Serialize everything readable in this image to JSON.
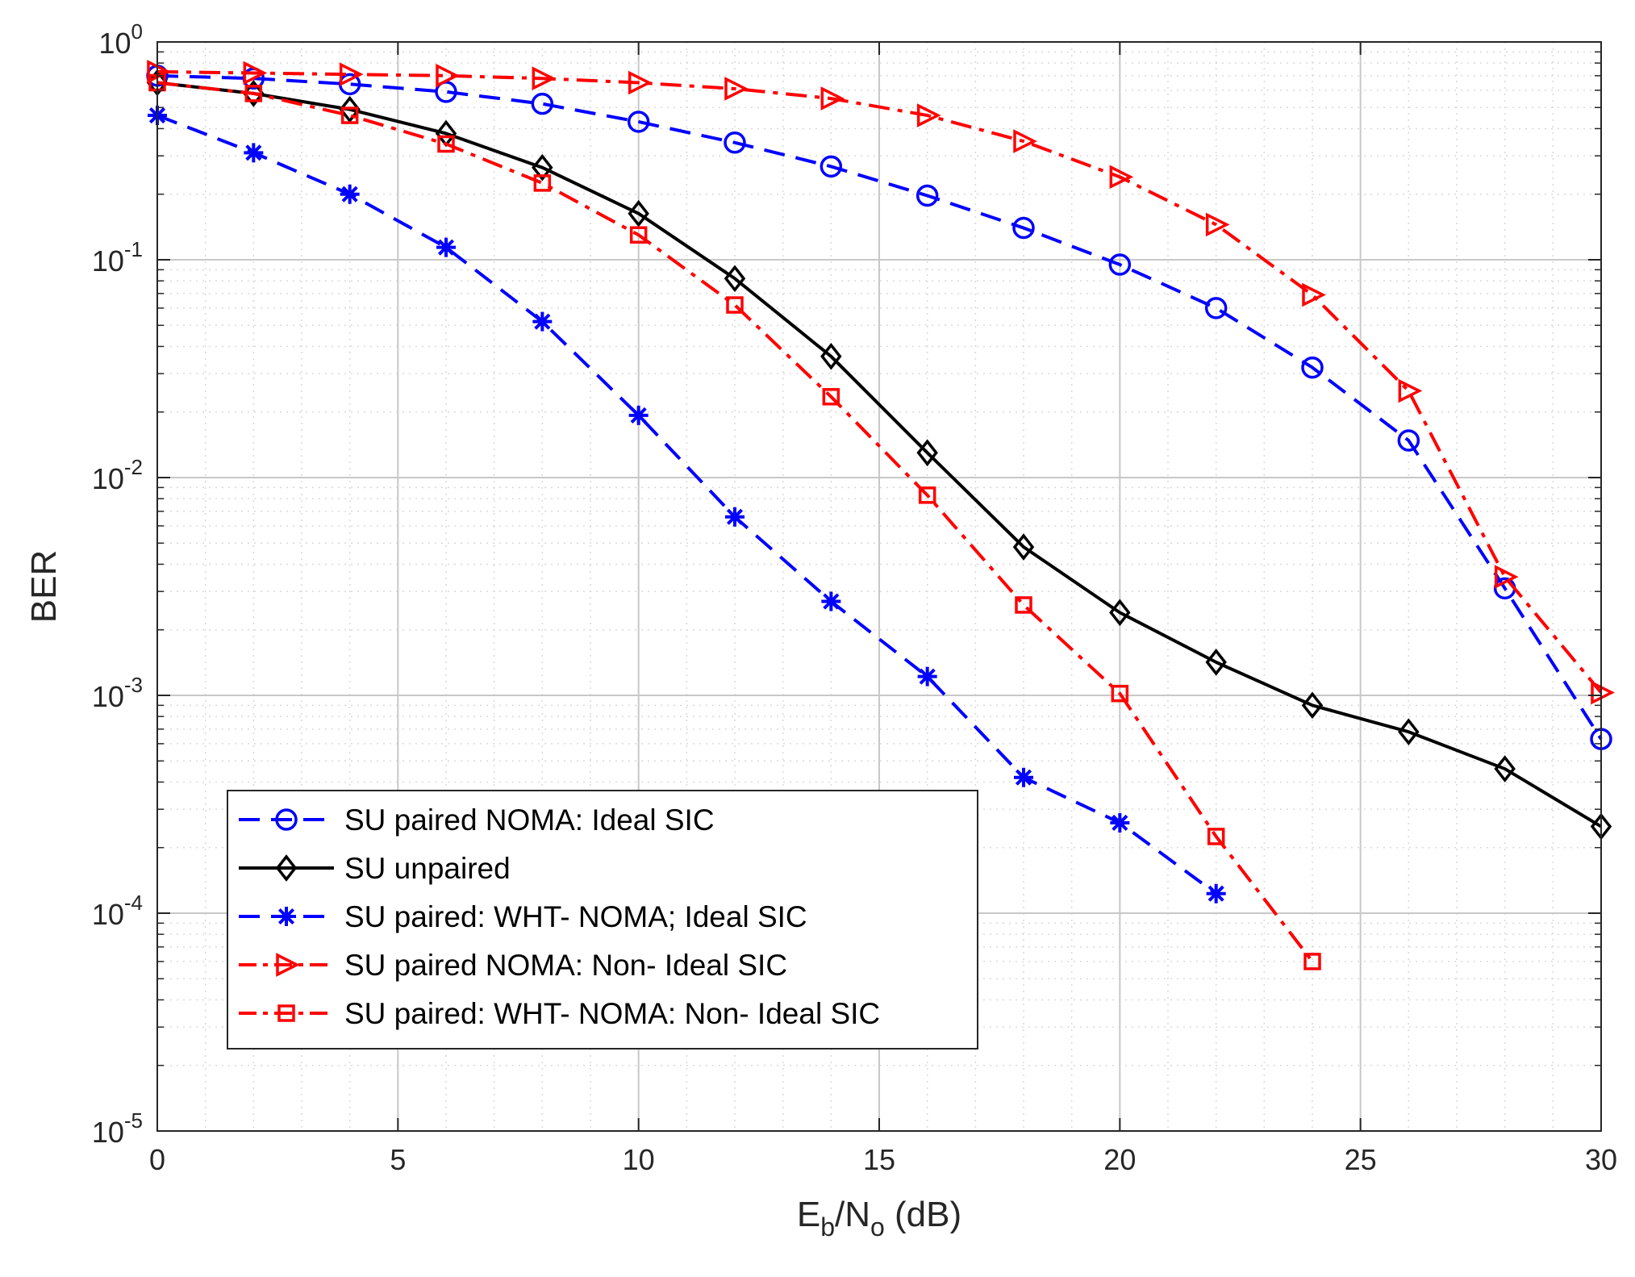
{
  "chart_data": {
    "type": "line",
    "xlabel": {
      "main": "E",
      "sub1": "b",
      "mid": "/N",
      "sub2": "o",
      "tail": " (dB)"
    },
    "ylabel": "BER",
    "yscale": "log",
    "xlim": [
      0,
      30
    ],
    "ylim": [
      1e-05,
      1
    ],
    "grid": true,
    "minor_grid": true,
    "legend_position": "bottom-left",
    "x_ticks": [
      0,
      5,
      10,
      15,
      20,
      25,
      30
    ],
    "x_tick_labels": [
      "0",
      "5",
      "10",
      "15",
      "20",
      "25",
      "30"
    ],
    "y_ticks": [
      {
        "value": 1,
        "base": "10",
        "exp": "0"
      },
      {
        "value": 0.1,
        "base": "10",
        "exp": "-1"
      },
      {
        "value": 0.01,
        "base": "10",
        "exp": "-2"
      },
      {
        "value": 0.001,
        "base": "10",
        "exp": "-3"
      },
      {
        "value": 0.0001,
        "base": "10",
        "exp": "-4"
      },
      {
        "value": 1e-05,
        "base": "10",
        "exp": "-5"
      }
    ],
    "series": [
      {
        "name": "SU paired NOMA: Ideal SIC",
        "color": "#0000ff",
        "dash": "dash",
        "marker": "circle",
        "x": [
          0,
          2,
          4,
          6,
          8,
          10,
          12,
          14,
          16,
          18,
          20,
          22,
          24,
          26,
          28,
          30
        ],
        "y": [
          0.7,
          0.68,
          0.64,
          0.59,
          0.52,
          0.43,
          0.345,
          0.268,
          0.197,
          0.14,
          0.095,
          0.06,
          0.032,
          0.0148,
          0.0031,
          0.00063
        ]
      },
      {
        "name": "SU unpaired",
        "color": "#000000",
        "dash": "solid",
        "marker": "diamond",
        "x": [
          0,
          2,
          4,
          6,
          8,
          10,
          12,
          14,
          16,
          18,
          20,
          22,
          24,
          26,
          28,
          30
        ],
        "y": [
          0.65,
          0.58,
          0.49,
          0.38,
          0.265,
          0.163,
          0.082,
          0.036,
          0.013,
          0.0048,
          0.0024,
          0.00142,
          0.0009,
          0.00068,
          0.00046,
          0.00025
        ]
      },
      {
        "name": "SU paired: WHT- NOMA; Ideal SIC",
        "color": "#0000ff",
        "dash": "dash",
        "marker": "asterisk",
        "x": [
          0,
          2,
          4,
          6,
          8,
          10,
          12,
          14,
          16,
          18,
          20,
          22
        ],
        "y": [
          0.46,
          0.31,
          0.2,
          0.114,
          0.052,
          0.0193,
          0.0066,
          0.0027,
          0.00122,
          0.00042,
          0.00026,
          0.000123
        ]
      },
      {
        "name": "SU paired NOMA: Non- Ideal SIC",
        "color": "#ff0000",
        "dash": "dashdot",
        "marker": "triangle-right",
        "x": [
          0,
          2,
          4,
          6,
          8,
          10,
          12,
          14,
          16,
          18,
          20,
          22,
          24,
          26,
          28,
          30
        ],
        "y": [
          0.73,
          0.72,
          0.71,
          0.7,
          0.68,
          0.65,
          0.61,
          0.55,
          0.46,
          0.35,
          0.24,
          0.145,
          0.069,
          0.025,
          0.0035,
          0.00103
        ]
      },
      {
        "name": "SU paired: WHT- NOMA: Non- Ideal SIC",
        "color": "#ff0000",
        "dash": "dashdot",
        "marker": "square",
        "x": [
          0,
          2,
          4,
          6,
          8,
          10,
          12,
          14,
          16,
          18,
          20,
          22,
          24
        ],
        "y": [
          0.65,
          0.58,
          0.46,
          0.34,
          0.225,
          0.13,
          0.062,
          0.0235,
          0.0083,
          0.0026,
          0.00102,
          0.000225,
          6e-05
        ]
      }
    ]
  }
}
